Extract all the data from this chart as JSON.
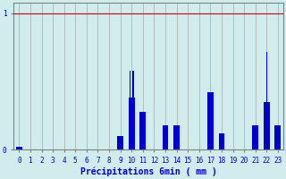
{
  "title": "",
  "xlabel": "Précipitations 6min ( mm )",
  "categories": [
    0,
    1,
    2,
    3,
    4,
    5,
    6,
    7,
    8,
    9,
    10,
    11,
    12,
    13,
    14,
    15,
    16,
    17,
    18,
    19,
    20,
    21,
    22,
    23
  ],
  "values": [
    0.02,
    0,
    0,
    0,
    0,
    0,
    0,
    0,
    0,
    0.1,
    0.38,
    0.28,
    0,
    0.18,
    0.18,
    0,
    0,
    0.42,
    0.12,
    0,
    0,
    0.18,
    0.35,
    0.18
  ],
  "tall_bars": {
    "10": 0.58,
    "10b": 0.58,
    "22": 0.72
  },
  "bar_color": "#0000cc",
  "background_color": "#d0ecec",
  "grid_color": "#a8a8a8",
  "ylim": [
    0,
    1.0
  ],
  "tick_color": "#0000cc",
  "xlabel_color": "#0000cc",
  "spine_color": "#808080",
  "hline_color": "#cc0000",
  "hline_y": 1.0
}
